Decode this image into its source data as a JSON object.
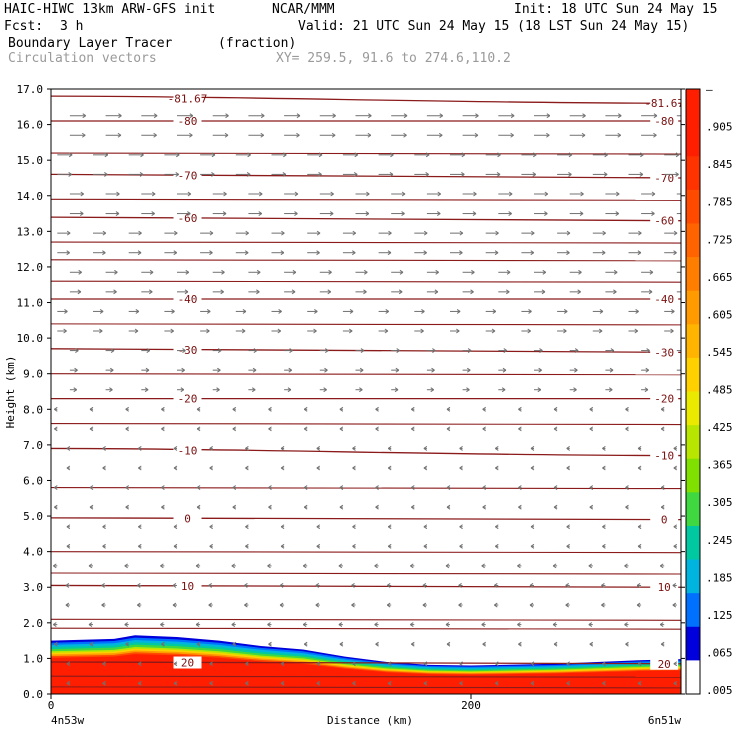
{
  "header": {
    "model": "HAIC-HIWC 13km ARW-GFS init",
    "org": "NCAR/MMM",
    "init": "Init: 18 UTC Sun 24 May 15",
    "fcst_label": "Fcst:",
    "fcst_value": "3 h",
    "valid": "Valid: 21 UTC Sun 24 May 15 (18 LST Sun 24 May 15)",
    "field": "Boundary Layer Tracer",
    "field_units": "(fraction)",
    "overlay": "Circulation vectors",
    "xy": "XY= 259.5, 91.6 to 274.6,110.2"
  },
  "colors": {
    "contour": "#8b1a1a",
    "vector": "#707070",
    "tracer_high": "#ff1f00"
  },
  "chart_data": {
    "type": "heatmap",
    "title": "Boundary Layer Tracer",
    "units": "(fraction)",
    "xlabel": "Distance (km)",
    "ylabel": "Height (km)",
    "xlim": [
      0,
      300
    ],
    "ylim": [
      0.0,
      17.0
    ],
    "x_ticks": [
      0,
      200
    ],
    "x_tick_labels": [
      "0",
      "200"
    ],
    "x_endpoint_labels": [
      "4n53w",
      "6n51w"
    ],
    "y_ticks": [
      0,
      1,
      2,
      3,
      4,
      5,
      6,
      7,
      8,
      9,
      10,
      11,
      12,
      13,
      14,
      15,
      16,
      17
    ],
    "y_tick_labels": [
      "0.0",
      "1.0",
      "2.0",
      "3.0",
      "4.0",
      "5.0",
      "6.0",
      "7.0",
      "8.0",
      "9.0",
      "10.0",
      "11.0",
      "12.0",
      "13.0",
      "14.0",
      "15.0",
      "16.0",
      "17.0"
    ],
    "colorbar": {
      "labels": [
        "–",
        ".905",
        ".845",
        ".785",
        ".725",
        ".665",
        ".605",
        ".545",
        ".485",
        ".425",
        ".365",
        ".305",
        ".245",
        ".185",
        ".125",
        ".065",
        ".005"
      ],
      "colors": [
        "#ff1f00",
        "#ff1f00",
        "#ff3300",
        "#ff4a00",
        "#ff6400",
        "#ff7e00",
        "#ff9a00",
        "#ffb400",
        "#ffd000",
        "#eaea00",
        "#b8e600",
        "#80e000",
        "#40d840",
        "#00c8a0",
        "#00b4e0",
        "#0070ff",
        "#0000dc",
        "#ffffff"
      ]
    },
    "tracer_top_km": [
      {
        "x": 0,
        "h": 1.5
      },
      {
        "x": 30,
        "h": 1.55
      },
      {
        "x": 40,
        "h": 1.65
      },
      {
        "x": 60,
        "h": 1.6
      },
      {
        "x": 80,
        "h": 1.5
      },
      {
        "x": 100,
        "h": 1.35
      },
      {
        "x": 120,
        "h": 1.25
      },
      {
        "x": 140,
        "h": 1.05
      },
      {
        "x": 160,
        "h": 0.9
      },
      {
        "x": 180,
        "h": 0.82
      },
      {
        "x": 200,
        "h": 0.8
      },
      {
        "x": 240,
        "h": 0.85
      },
      {
        "x": 280,
        "h": 0.95
      },
      {
        "x": 300,
        "h": 0.98
      }
    ],
    "temperature_contours": [
      {
        "value": "-81.67",
        "h_left": 16.8,
        "h_right": 16.6
      },
      {
        "value": "-80",
        "h_left": 16.1,
        "h_right": 16.1
      },
      {
        "value": "-70",
        "h_left": 14.6,
        "h_right": 14.5
      },
      {
        "value": "-60",
        "h_left": 13.4,
        "h_right": 13.3
      },
      {
        "value": "-40",
        "h_left": 11.1,
        "h_right": 11.1
      },
      {
        "value": "-30",
        "h_left": 9.7,
        "h_right": 9.6
      },
      {
        "value": "-20",
        "h_left": 8.3,
        "h_right": 8.3
      },
      {
        "value": "-10",
        "h_left": 6.9,
        "h_right": 6.7
      },
      {
        "value": "0",
        "h_left": 4.95,
        "h_right": 4.9
      },
      {
        "value": "10",
        "h_left": 3.05,
        "h_right": 3.0
      },
      {
        "value": "20",
        "h_left": 0.9,
        "h_right": 0.85
      }
    ],
    "unlabeled_contour_heights_km": [
      15.2,
      13.9,
      12.7,
      12.2,
      11.6,
      10.4,
      9.0,
      7.6,
      5.8,
      4.0,
      3.4,
      2.1,
      1.85,
      0.5,
      0.2
    ]
  }
}
